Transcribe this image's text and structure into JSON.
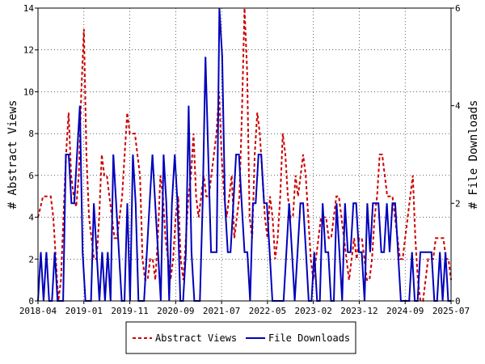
{
  "chart_data": {
    "type": "line",
    "ylabel_left": "# Abstract Views",
    "ylabel_right": "# File Downloads",
    "xlabels": [
      "2018-04",
      "2019-01",
      "2019-11",
      "2020-09",
      "2021-07",
      "2022-05",
      "2023-02",
      "2023-12",
      "2024-09",
      "2025-07"
    ],
    "ylim_left": [
      0,
      14
    ],
    "yticks_left": [
      0,
      2,
      4,
      6,
      8,
      10,
      12,
      14
    ],
    "ylim_right": [
      0,
      6
    ],
    "yticks_right": [
      0,
      2,
      4,
      6
    ],
    "grid": true,
    "legend_position": "bottom-center",
    "series": [
      {
        "name": "Abstract Views",
        "axis": "left",
        "color": "#cc0000",
        "style": "dashed",
        "values": [
          4,
          4.5,
          5,
          5,
          5,
          5,
          4,
          2,
          0,
          1,
          4,
          7,
          9,
          6,
          5,
          4.5,
          6,
          10,
          13,
          7,
          4,
          3,
          2,
          2,
          4,
          7,
          6,
          6,
          5,
          4,
          3,
          3,
          4,
          5,
          7,
          9,
          8,
          8,
          8,
          7,
          6,
          2,
          1,
          1,
          2,
          2,
          1,
          3,
          6,
          5,
          3,
          2,
          1,
          2,
          4,
          5,
          2,
          1,
          3,
          5,
          6,
          8,
          5,
          4,
          5,
          6,
          5,
          5,
          6,
          7,
          8,
          10,
          7,
          5,
          4,
          5,
          6,
          3,
          4,
          5,
          9,
          14,
          11,
          4,
          3,
          7,
          9,
          8,
          6,
          4,
          3,
          5,
          4,
          2,
          3,
          5,
          8,
          7,
          5,
          4,
          4,
          6,
          5,
          6,
          7,
          6,
          4,
          2,
          1,
          2,
          3,
          4,
          4,
          4,
          3,
          3,
          4,
          5,
          5,
          4,
          3,
          2,
          1,
          2,
          3,
          2,
          3,
          3,
          2,
          1,
          1,
          2,
          4,
          5,
          7,
          7,
          6,
          5,
          5,
          5,
          4,
          3,
          2,
          2,
          3,
          4,
          5,
          6,
          3,
          1,
          0,
          0,
          1,
          2,
          2,
          2,
          3,
          3,
          3,
          3,
          2,
          2,
          1
        ]
      },
      {
        "name": "File Downloads",
        "axis": "right",
        "color": "#0000bb",
        "style": "solid",
        "values": [
          0,
          1,
          0,
          1,
          0,
          0,
          1,
          0,
          0,
          0,
          3,
          3,
          2,
          2,
          3,
          4,
          1,
          0,
          0,
          0,
          2,
          1,
          0,
          1,
          0,
          1,
          0,
          3,
          2,
          1,
          0,
          0,
          2,
          0,
          3,
          2,
          0,
          0,
          0,
          1,
          2,
          3,
          2,
          1,
          0,
          3,
          2,
          0,
          2,
          3,
          2,
          0,
          0,
          1,
          4,
          1,
          0,
          0,
          0,
          2,
          5,
          3,
          1,
          1,
          1,
          6,
          5,
          2,
          1,
          1,
          2,
          3,
          3,
          2,
          1,
          1,
          0,
          2,
          2,
          3,
          3,
          2,
          2,
          1,
          0,
          0,
          0,
          0,
          0,
          1,
          2,
          1,
          0,
          1,
          2,
          2,
          1,
          0,
          0,
          1,
          0,
          0,
          2,
          1,
          1,
          0,
          0,
          2,
          1,
          0,
          2,
          1,
          1,
          2,
          2,
          1,
          1,
          0,
          2,
          1,
          2,
          2,
          2,
          1,
          1,
          2,
          1,
          2,
          2,
          1,
          0,
          0,
          0,
          0,
          1,
          0,
          0,
          1,
          1,
          1,
          1,
          1,
          0,
          0,
          1,
          0,
          1,
          0,
          0
        ]
      }
    ]
  }
}
